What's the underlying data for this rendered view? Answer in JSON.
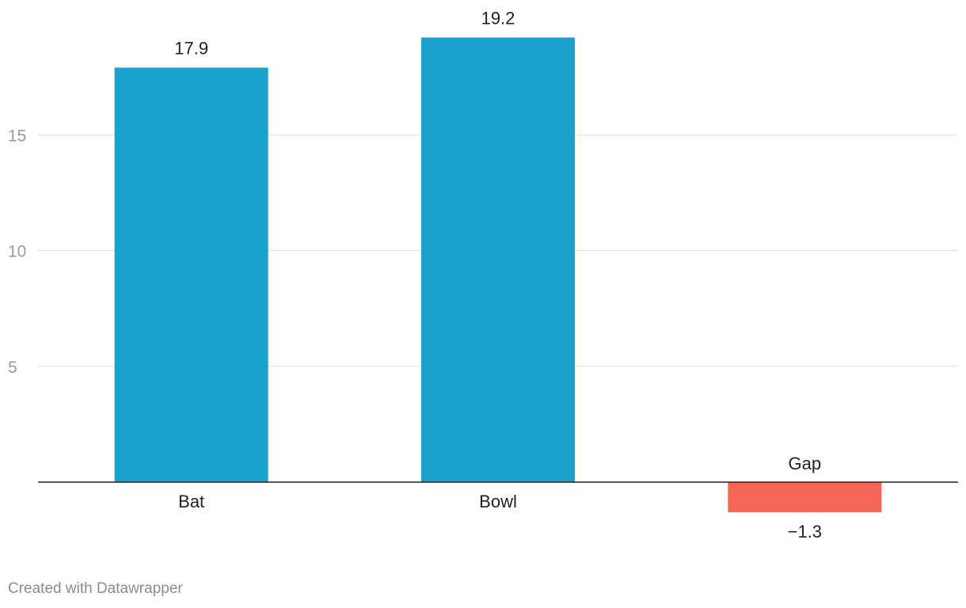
{
  "chart_data": {
    "type": "bar",
    "categories": [
      "Bat",
      "Bowl",
      "Gap"
    ],
    "values": [
      17.9,
      19.2,
      -1.3
    ],
    "value_labels": [
      "17.9",
      "19.2",
      "−1.3"
    ],
    "title": "",
    "xlabel": "",
    "ylabel": "",
    "ylim": [
      -1.3,
      19.2
    ],
    "yticks": [
      5,
      10,
      15
    ],
    "ytick_labels": [
      "5",
      "10",
      "15"
    ],
    "grid": true,
    "colors": {
      "positive": "#1aa1ce",
      "negative": "#f66555"
    }
  },
  "footer": {
    "credit": "Created with Datawrapper"
  }
}
